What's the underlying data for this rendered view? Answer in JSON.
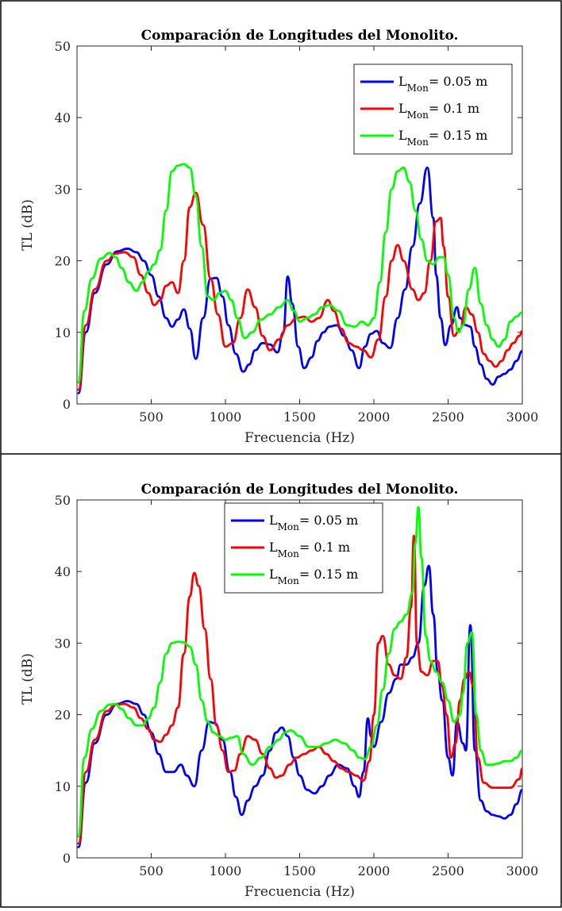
{
  "chart_data": [
    {
      "type": "line",
      "title": "Comparación de Longitudes del Monolito.",
      "xlabel": "Frecuencia (Hz)",
      "ylabel": "TL (dB)",
      "xlim": [
        0,
        3000
      ],
      "ylim": [
        0,
        50
      ],
      "xticks": [
        "500",
        "1000",
        "1500",
        "2000",
        "2500",
        "3000"
      ],
      "yticks": [
        "0",
        "10",
        "20",
        "30",
        "40",
        "50"
      ],
      "grid": false,
      "legend_position": "top-right",
      "series": [
        {
          "name": "L_Mon = 0.05 m",
          "label_main": "L",
          "label_sub": "Mon",
          "label_value": "= 0.05 m",
          "color": "#0000ff",
          "x": [
            10,
            60,
            120,
            200,
            270,
            340,
            400,
            450,
            500,
            550,
            600,
            640,
            680,
            720,
            760,
            800,
            850,
            900,
            940,
            980,
            1020,
            1070,
            1120,
            1160,
            1200,
            1250,
            1300,
            1350,
            1390,
            1420,
            1450,
            1490,
            1530,
            1580,
            1620,
            1660,
            1700,
            1750,
            1800,
            1850,
            1900,
            1940,
            1980,
            2020,
            2060,
            2110,
            2160,
            2210,
            2260,
            2310,
            2360,
            2400,
            2420,
            2450,
            2480,
            2520,
            2560,
            2580,
            2620,
            2650,
            2680,
            2720,
            2760,
            2800,
            2840,
            2880,
            2920,
            2960,
            3000
          ],
          "y": [
            1.5,
            10,
            15.5,
            19.5,
            21.3,
            21.7,
            21.2,
            20,
            18,
            15,
            12,
            10.8,
            11.8,
            13.2,
            10.5,
            6.3,
            12,
            17.5,
            17.6,
            15,
            11,
            7,
            4.5,
            5.5,
            7.5,
            8.5,
            8.3,
            7.2,
            10,
            17.8,
            14,
            8,
            5,
            6.5,
            8.8,
            10,
            10.8,
            11,
            9.5,
            7.5,
            5,
            8,
            9.8,
            10.2,
            8.5,
            7.8,
            12,
            16,
            22,
            28,
            33,
            26,
            18,
            12,
            8.2,
            11,
            13.5,
            12,
            11,
            10.8,
            8,
            5.5,
            3.5,
            2.7,
            3.8,
            4.2,
            4.8,
            6,
            7.4
          ]
        },
        {
          "name": "L_Mon = 0.1 m",
          "label_main": "L",
          "label_sub": "Mon",
          "label_value": "= 0.1 m",
          "color": "#ff0000",
          "x": [
            10,
            60,
            120,
            200,
            260,
            320,
            380,
            430,
            480,
            520,
            560,
            600,
            640,
            680,
            720,
            760,
            800,
            850,
            900,
            950,
            1000,
            1050,
            1100,
            1150,
            1200,
            1250,
            1300,
            1360,
            1420,
            1480,
            1530,
            1580,
            1630,
            1690,
            1730,
            1780,
            1830,
            1880,
            1930,
            1980,
            2030,
            2080,
            2120,
            2160,
            2200,
            2260,
            2300,
            2340,
            2380,
            2420,
            2450,
            2470,
            2500,
            2540,
            2580,
            2620,
            2660,
            2700,
            2740,
            2780,
            2820,
            2860,
            2900,
            2940,
            2980,
            3000
          ],
          "y": [
            2,
            11,
            16,
            20,
            21,
            21.2,
            20.5,
            18,
            15.5,
            13.8,
            14.5,
            16.5,
            17,
            15.5,
            20,
            27.5,
            29.5,
            25,
            17.5,
            12.5,
            8,
            8.5,
            12,
            16,
            13.5,
            9.5,
            7.5,
            9,
            11,
            12,
            12.2,
            11.5,
            12,
            14.5,
            13,
            10.5,
            8.5,
            8,
            7.5,
            6.5,
            9,
            15,
            20,
            22.2,
            20,
            16,
            14.5,
            15.5,
            20,
            25.5,
            26,
            22,
            15,
            9.5,
            10.5,
            13.5,
            12.5,
            10,
            7,
            6,
            5.2,
            6,
            7.5,
            8.5,
            9.5,
            10.2
          ]
        },
        {
          "name": "L_Mon = 0.15 m",
          "label_main": "L",
          "label_sub": "Mon",
          "label_value": "= 0.15 m",
          "color": "#00ff00",
          "x": [
            10,
            50,
            100,
            160,
            220,
            260,
            300,
            350,
            400,
            440,
            480,
            520,
            560,
            600,
            640,
            680,
            720,
            760,
            800,
            840,
            880,
            920,
            960,
            1000,
            1040,
            1080,
            1130,
            1180,
            1240,
            1300,
            1360,
            1420,
            1460,
            1500,
            1550,
            1600,
            1650,
            1700,
            1760,
            1820,
            1870,
            1920,
            1960,
            2000,
            2040,
            2080,
            2120,
            2160,
            2200,
            2240,
            2280,
            2320,
            2360,
            2400,
            2440,
            2470,
            2500,
            2540,
            2570,
            2600,
            2640,
            2680,
            2720,
            2760,
            2800,
            2840,
            2880,
            2920,
            2960,
            3000
          ],
          "y": [
            3,
            13,
            17.5,
            20.3,
            21.1,
            20.5,
            19,
            17,
            15.8,
            17,
            18.5,
            19.5,
            21.5,
            27,
            32.5,
            33.3,
            33.5,
            33,
            29,
            22,
            15,
            14.5,
            15.5,
            15.8,
            14.5,
            12,
            9.2,
            10,
            11.8,
            12.5,
            13.5,
            14.5,
            13,
            11.5,
            12,
            12.5,
            13.5,
            13.8,
            13,
            11,
            10.8,
            11.5,
            11,
            12,
            17,
            24,
            30,
            32.5,
            33,
            31,
            27,
            23,
            20,
            19.5,
            20.5,
            20.5,
            18,
            12,
            10,
            11,
            16,
            19,
            14,
            11,
            9,
            8,
            9,
            11.5,
            12.2,
            12.8
          ]
        }
      ]
    },
    {
      "type": "line",
      "title": "Comparación de Longitudes del Monolito.",
      "xlabel": "Frecuencia (Hz)",
      "ylabel": "TL (dB)",
      "xlim": [
        0,
        3000
      ],
      "ylim": [
        0,
        50
      ],
      "xticks": [
        "500",
        "1000",
        "1500",
        "2000",
        "2500",
        "3000"
      ],
      "yticks": [
        "0",
        "10",
        "20",
        "30",
        "40",
        "50"
      ],
      "grid": false,
      "legend_position": "top-center",
      "series": [
        {
          "name": "L_Mon = 0.05 m",
          "label_main": "L",
          "label_sub": "Mon",
          "label_value": "= 0.05 m",
          "color": "#0000ff",
          "x": [
            10,
            60,
            120,
            200,
            270,
            340,
            400,
            450,
            500,
            550,
            600,
            650,
            700,
            740,
            790,
            840,
            890,
            930,
            980,
            1030,
            1070,
            1110,
            1150,
            1200,
            1250,
            1300,
            1340,
            1380,
            1420,
            1460,
            1500,
            1550,
            1600,
            1650,
            1700,
            1760,
            1820,
            1870,
            1900,
            1930,
            1960,
            1980,
            2000,
            2050,
            2100,
            2150,
            2180,
            2220,
            2260,
            2300,
            2340,
            2370,
            2400,
            2430,
            2460,
            2500,
            2530,
            2560,
            2600,
            2620,
            2650,
            2680,
            2720,
            2760,
            2800,
            2840,
            2880,
            2920,
            2960,
            3000
          ],
          "y": [
            1.5,
            10.5,
            16,
            20,
            21.5,
            21.9,
            21.5,
            20,
            17.5,
            14.5,
            12,
            12,
            13,
            11.5,
            10,
            15,
            19,
            18.8,
            16.5,
            12,
            8.5,
            6,
            8,
            10,
            11.5,
            15,
            17.5,
            18.2,
            17,
            14,
            11.5,
            9.5,
            9,
            10,
            11.5,
            13,
            12.5,
            10,
            8.5,
            12,
            19.5,
            17,
            15.5,
            19,
            23,
            25,
            27,
            27,
            28,
            30,
            38,
            40.8,
            34,
            26,
            22,
            14,
            11.5,
            19,
            16,
            15,
            32.5,
            15,
            8,
            6.5,
            6,
            5.8,
            5.5,
            6,
            7.5,
            9.5
          ]
        },
        {
          "name": "L_Mon = 0.1 m",
          "label_main": "L",
          "label_sub": "Mon",
          "label_value": "= 0.1 m",
          "color": "#ff0000",
          "x": [
            10,
            60,
            120,
            200,
            260,
            320,
            380,
            430,
            480,
            520,
            560,
            600,
            640,
            680,
            720,
            760,
            790,
            820,
            860,
            900,
            940,
            980,
            1020,
            1060,
            1100,
            1150,
            1200,
            1250,
            1300,
            1340,
            1380,
            1430,
            1480,
            1530,
            1580,
            1630,
            1680,
            1730,
            1780,
            1830,
            1880,
            1930,
            1970,
            2000,
            2030,
            2060,
            2100,
            2140,
            2180,
            2220,
            2250,
            2270,
            2290,
            2320,
            2360,
            2400,
            2430,
            2460,
            2490,
            2520,
            2550,
            2580,
            2610,
            2640,
            2670,
            2700,
            2740,
            2800,
            2860,
            2920,
            2980,
            3000
          ],
          "y": [
            2,
            12,
            16.5,
            20.5,
            21.4,
            21.5,
            21,
            19.5,
            18,
            16.5,
            16.2,
            17.2,
            18.5,
            21,
            28.5,
            36.5,
            39.8,
            38,
            32,
            25,
            18.5,
            15,
            12,
            12.2,
            14.5,
            17,
            16.5,
            14.5,
            12.5,
            11.2,
            11.5,
            13,
            14,
            14.5,
            15,
            15.5,
            14.5,
            13.5,
            12.5,
            12,
            11.5,
            10.8,
            13.5,
            20,
            30,
            31,
            27,
            25.5,
            25,
            28,
            35,
            45,
            30,
            26,
            25.5,
            27.5,
            27.5,
            24,
            20,
            14,
            16,
            22,
            25,
            26,
            24,
            14,
            10.5,
            9.8,
            9.8,
            9.8,
            11,
            12.5
          ]
        },
        {
          "name": "L_Mon = 0.15 m",
          "label_main": "L",
          "label_sub": "Mon",
          "label_value": "= 0.15 m",
          "color": "#00ff00",
          "x": [
            10,
            50,
            100,
            160,
            220,
            260,
            300,
            350,
            400,
            440,
            480,
            520,
            560,
            600,
            640,
            680,
            720,
            760,
            800,
            840,
            880,
            920,
            960,
            1000,
            1040,
            1080,
            1120,
            1180,
            1240,
            1300,
            1360,
            1400,
            1440,
            1500,
            1560,
            1620,
            1680,
            1740,
            1800,
            1860,
            1900,
            1940,
            1980,
            2020,
            2060,
            2100,
            2140,
            2180,
            2220,
            2260,
            2280,
            2300,
            2320,
            2350,
            2380,
            2420,
            2460,
            2500,
            2540,
            2580,
            2600,
            2630,
            2660,
            2690,
            2720,
            2760,
            2800,
            2840,
            2880,
            2920,
            2960,
            3000
          ],
          "y": [
            3,
            14,
            18,
            20.5,
            21.4,
            21.5,
            20.8,
            19.5,
            18.5,
            18.5,
            19.5,
            21,
            24.5,
            28.5,
            30,
            30.2,
            30.1,
            29.5,
            27,
            22,
            19,
            17.5,
            17,
            16.5,
            16.8,
            17,
            14.5,
            13,
            14,
            15.5,
            16.5,
            17.5,
            17.8,
            17,
            15.5,
            15.5,
            16,
            16.5,
            16,
            15,
            14,
            13.8,
            15.5,
            18.5,
            23.5,
            28.5,
            32,
            33,
            34,
            37,
            44,
            49,
            42,
            31,
            27.5,
            26,
            24.5,
            22,
            19,
            20,
            23,
            30,
            31.5,
            20,
            15,
            13,
            13,
            13.2,
            13.5,
            13.5,
            14,
            15
          ]
        }
      ]
    }
  ]
}
